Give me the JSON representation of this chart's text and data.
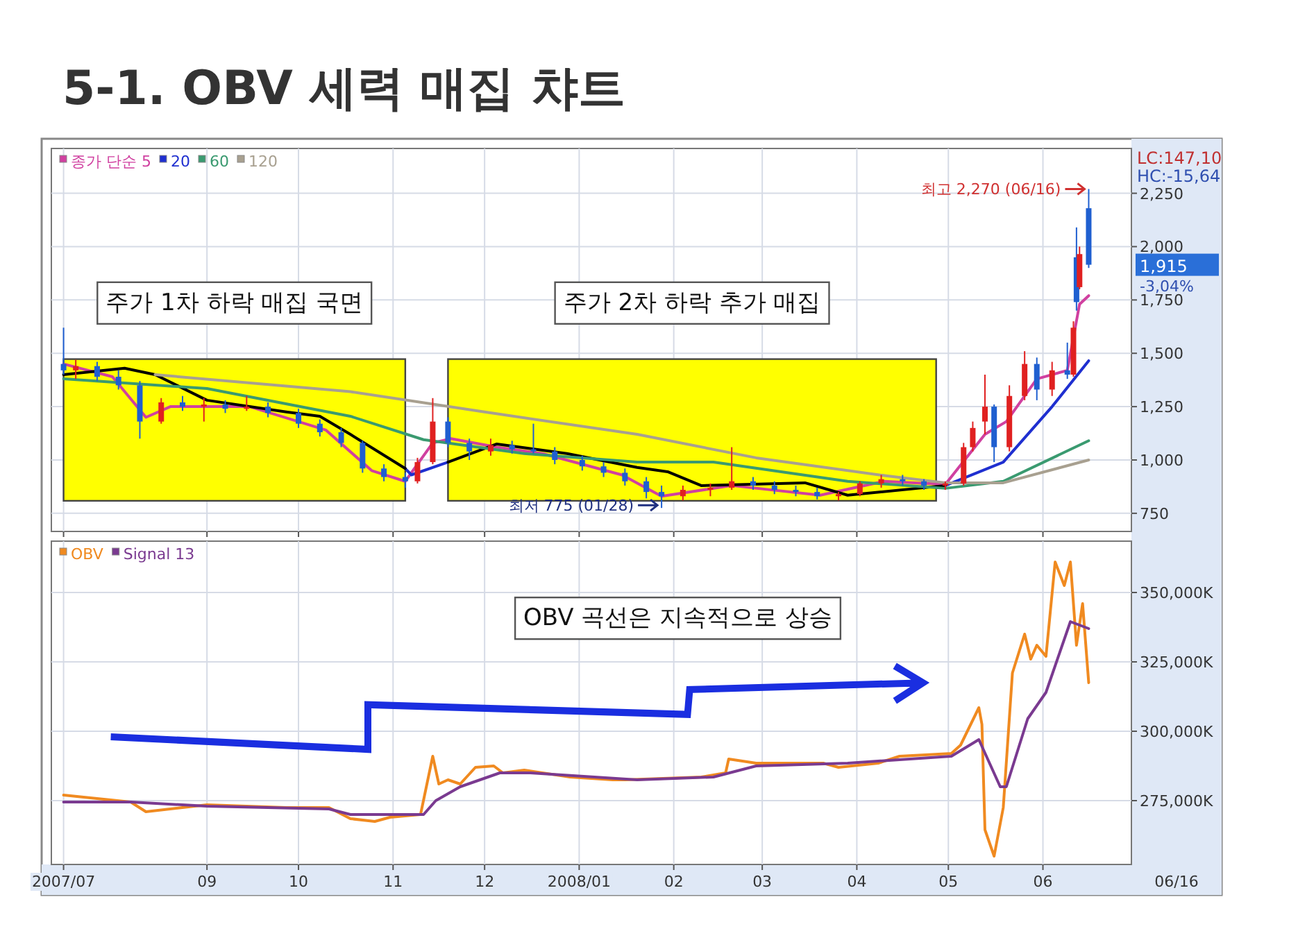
{
  "chart_data": [
    {
      "type": "candlestick",
      "title": "5-1. OBV 세력 매집 챠트",
      "x": [
        "2007-07-16",
        "2007-07-20",
        "2007-07-27",
        "2007-08-03",
        "2007-08-10",
        "2007-08-17",
        "2007-08-24",
        "2007-08-31",
        "2007-09-07",
        "2007-09-14",
        "2007-09-21",
        "2007-10-01",
        "2007-10-08",
        "2007-10-15",
        "2007-10-22",
        "2007-10-29",
        "2007-11-05",
        "2007-11-09",
        "2007-11-14",
        "2007-11-19",
        "2007-11-26",
        "2007-12-03",
        "2007-12-10",
        "2007-12-17",
        "2007-12-24",
        "2008-01-02",
        "2008-01-09",
        "2008-01-16",
        "2008-01-23",
        "2008-01-28",
        "2008-02-04",
        "2008-02-13",
        "2008-02-20",
        "2008-02-27",
        "2008-03-05",
        "2008-03-12",
        "2008-03-19",
        "2008-03-26",
        "2008-04-02",
        "2008-04-09",
        "2008-04-16",
        "2008-04-23",
        "2008-04-30",
        "2008-05-06",
        "2008-05-09",
        "2008-05-13",
        "2008-05-16",
        "2008-05-21",
        "2008-05-26",
        "2008-05-30",
        "2008-06-04",
        "2008-06-09",
        "2008-06-11",
        "2008-06-12",
        "2008-06-13",
        "2008-06-16"
      ],
      "ohlc": [
        [
          1450,
          1620,
          1400,
          1420
        ],
        [
          1420,
          1470,
          1380,
          1440
        ],
        [
          1440,
          1460,
          1370,
          1390
        ],
        [
          1390,
          1420,
          1330,
          1350
        ],
        [
          1350,
          1370,
          1100,
          1180
        ],
        [
          1180,
          1290,
          1170,
          1270
        ],
        [
          1270,
          1300,
          1230,
          1250
        ],
        [
          1250,
          1290,
          1180,
          1260
        ],
        [
          1260,
          1280,
          1220,
          1240
        ],
        [
          1240,
          1300,
          1230,
          1250
        ],
        [
          1250,
          1270,
          1200,
          1220
        ],
        [
          1220,
          1240,
          1150,
          1170
        ],
        [
          1170,
          1190,
          1110,
          1130
        ],
        [
          1130,
          1150,
          1060,
          1080
        ],
        [
          1080,
          1090,
          940,
          960
        ],
        [
          960,
          980,
          900,
          920
        ],
        [
          920,
          940,
          870,
          900
        ],
        [
          900,
          1010,
          890,
          990
        ],
        [
          990,
          1290,
          980,
          1180
        ],
        [
          1180,
          1200,
          1060,
          1080
        ],
        [
          1080,
          1100,
          1000,
          1040
        ],
        [
          1040,
          1100,
          1020,
          1070
        ],
        [
          1070,
          1090,
          1030,
          1050
        ],
        [
          1050,
          1170,
          1030,
          1040
        ],
        [
          1040,
          1060,
          980,
          1000
        ],
        [
          1000,
          1020,
          950,
          970
        ],
        [
          970,
          990,
          920,
          940
        ],
        [
          940,
          960,
          880,
          900
        ],
        [
          900,
          920,
          820,
          850
        ],
        [
          850,
          880,
          775,
          830
        ],
        [
          830,
          880,
          810,
          860
        ],
        [
          860,
          890,
          830,
          870
        ],
        [
          870,
          1060,
          860,
          900
        ],
        [
          900,
          920,
          860,
          880
        ],
        [
          880,
          900,
          840,
          860
        ],
        [
          860,
          880,
          830,
          850
        ],
        [
          850,
          870,
          815,
          830
        ],
        [
          830,
          850,
          810,
          840
        ],
        [
          840,
          900,
          830,
          890
        ],
        [
          890,
          930,
          870,
          910
        ],
        [
          910,
          930,
          880,
          900
        ],
        [
          900,
          910,
          860,
          880
        ],
        [
          880,
          900,
          860,
          890
        ],
        [
          890,
          1080,
          880,
          1060
        ],
        [
          1060,
          1180,
          1040,
          1150
        ],
        [
          1180,
          1400,
          1120,
          1250
        ],
        [
          1250,
          1260,
          990,
          1060
        ],
        [
          1060,
          1350,
          1040,
          1300
        ],
        [
          1300,
          1510,
          1280,
          1450
        ],
        [
          1450,
          1480,
          1280,
          1330
        ],
        [
          1330,
          1460,
          1300,
          1420
        ],
        [
          1420,
          1550,
          1380,
          1400
        ],
        [
          1400,
          1650,
          1390,
          1620
        ],
        [
          1950,
          2090,
          1700,
          1740
        ],
        [
          1810,
          2000,
          1800,
          1965
        ],
        [
          2180,
          2270,
          1900,
          1915
        ]
      ],
      "series": [
        {
          "name": "종가 단순 5",
          "type": "line",
          "color": "#d040a0",
          "x": [
            "2007-07-16",
            "2007-08-01",
            "2007-08-12",
            "2007-08-20",
            "2007-09-15",
            "2007-10-10",
            "2007-10-25",
            "2007-11-05",
            "2007-11-14",
            "2007-11-20",
            "2007-12-05",
            "2007-12-20",
            "2008-01-15",
            "2008-01-28",
            "2008-02-20",
            "2008-03-20",
            "2008-04-10",
            "2008-04-30",
            "2008-05-13",
            "2008-05-20",
            "2008-05-30",
            "2008-06-09",
            "2008-06-13",
            "2008-06-16"
          ],
          "values": [
            1450,
            1390,
            1200,
            1250,
            1250,
            1140,
            950,
            900,
            1080,
            1100,
            1060,
            1030,
            930,
            830,
            880,
            835,
            900,
            885,
            1120,
            1180,
            1380,
            1420,
            1730,
            1770
          ]
        },
        {
          "name": "20",
          "type": "line",
          "color": "#1f2fd0",
          "x": [
            "2007-11-05",
            "2007-11-07",
            "2007-11-19",
            "2007-12-01",
            "2008-04-30",
            "2008-05-19",
            "2008-06-04",
            "2008-06-16"
          ],
          "values": [
            960,
            930,
            990,
            null,
            880,
            990,
            1250,
            1465
          ]
        },
        {
          "type": "line",
          "color": "#000000",
          "x": [
            "2007-07-16",
            "2007-08-05",
            "2007-08-15",
            "2007-09-01",
            "2007-09-27",
            "2007-10-08",
            "2007-10-18",
            "2007-11-05",
            "2007-11-12",
            "2007-11-19",
            "2007-12-05",
            "2007-12-28",
            "2008-01-20",
            "2008-01-30",
            "2008-02-10",
            "2008-03-15",
            "2008-03-29",
            "2008-04-30"
          ],
          "values": [
            1400,
            1430,
            1400,
            1280,
            1225,
            1205,
            1120,
            960,
            null,
            990,
            1075,
            1030,
            965,
            945,
            880,
            893,
            835,
            880
          ]
        },
        {
          "name": "60",
          "type": "line",
          "color": "#3a9a70",
          "x": [
            "2007-07-16",
            "2007-09-01",
            "2007-10-18",
            "2007-11-11",
            "2007-12-14",
            "2008-01-20",
            "2008-02-14",
            "2008-03-29",
            "2008-04-30",
            "2008-05-19",
            "2008-06-16"
          ],
          "values": [
            1380,
            1335,
            1205,
            1095,
            1030,
            990,
            990,
            900,
            867,
            900,
            1090
          ]
        },
        {
          "name": "120",
          "type": "line",
          "color": "#a8a090",
          "x": [
            "2007-08-15",
            "2007-10-18",
            "2007-12-01",
            "2008-01-20",
            "2008-02-28",
            "2008-04-11",
            "2008-04-30",
            "2008-05-19",
            "2008-06-16"
          ],
          "values": [
            1400,
            1320,
            1225,
            1120,
            1010,
            925,
            893,
            893,
            1000
          ]
        }
      ],
      "xlim": [
        "2007-07-12",
        "2008-06-30"
      ],
      "xticks": [
        {
          "value": "2007-07-16",
          "label": null
        },
        {
          "value": "2007-09-01",
          "label": null
        },
        {
          "value": "2007-10-01",
          "label": null
        },
        {
          "value": "2007-11-01",
          "label": null
        },
        {
          "value": "2007-12-01",
          "label": null
        },
        {
          "value": "2008-01-01",
          "label": null
        },
        {
          "value": "2008-02-01",
          "label": null
        },
        {
          "value": "2008-03-01",
          "label": null
        },
        {
          "value": "2008-04-01",
          "label": null
        },
        {
          "value": "2008-05-01",
          "label": null
        },
        {
          "value": "2008-06-01",
          "label": null
        }
      ],
      "ylim": [
        665,
        2460
      ],
      "yticks": [
        750,
        {
          "value": 1000,
          "label": "1,000"
        },
        {
          "value": 1250,
          "label": "1,250"
        },
        {
          "value": 1500,
          "label": "1,500"
        },
        {
          "value": 1750,
          "label": "1,750"
        },
        {
          "value": 2000,
          "label": "2,000"
        },
        {
          "value": 2250,
          "label": "2,250"
        }
      ],
      "tick_labels": "y",
      "grid": true,
      "legend": "top left",
      "bands": [
        {
          "axis": "x",
          "from": "2007-07-16",
          "to": "2007-11-05",
          "label": "주가 1차 하락 매집 국면",
          "color": "#ffff00"
        },
        {
          "axis": "x",
          "from": "2007-11-19",
          "to": "2008-04-27",
          "label": "주가 2차 하락 추가 매집",
          "color": "#ffff00"
        }
      ],
      "annotations": [
        "LC:147,10",
        "HC:-15,64",
        {
          "text": "최고 2,270 (06/16)",
          "x": "2008-06-16",
          "y": 2270
        },
        {
          "text": "최저 775 (01/28)",
          "x": "2008-01-28",
          "y": 775
        },
        "1,915",
        "-3,04%"
      ]
    },
    {
      "type": "line",
      "series": [
        {
          "name": "OBV",
          "color": "#f08a20",
          "x": [
            "2007-07-16",
            "2007-08-07",
            "2007-08-12",
            "2007-09-01",
            "2007-09-27",
            "2007-10-11",
            "2007-10-18",
            "2007-10-26",
            "2007-10-31",
            "2007-11-10",
            "2007-11-14",
            "2007-11-16",
            "2007-11-19",
            "2007-11-23",
            "2007-11-28",
            "2007-12-04",
            "2007-12-07",
            "2007-12-14",
            "2007-12-29",
            "2008-01-12",
            "2008-01-16",
            "2008-02-10",
            "2008-02-18",
            "2008-02-19",
            "2008-02-22",
            "2008-02-28",
            "2008-03-21",
            "2008-03-26",
            "2008-04-08",
            "2008-04-15",
            "2008-05-02",
            "2008-05-05",
            "2008-05-11",
            "2008-05-12",
            "2008-05-13",
            "2008-05-16",
            "2008-05-19",
            "2008-05-22",
            "2008-05-26",
            "2008-05-28",
            "2008-05-30",
            "2008-06-02",
            "2008-06-05",
            "2008-06-08",
            "2008-06-10",
            "2008-06-12",
            "2008-06-14",
            "2008-06-16"
          ],
          "values": [
            277000,
            274500,
            271000,
            273500,
            272500,
            272500,
            268500,
            267500,
            269000,
            270000,
            291000,
            281000,
            282500,
            281000,
            287000,
            287500,
            285000,
            286000,
            283500,
            282500,
            282500,
            283500,
            285000,
            290000,
            289500,
            288500,
            288500,
            287000,
            288500,
            291000,
            292000,
            295000,
            308500,
            302500,
            264500,
            255000,
            272500,
            321000,
            335000,
            326000,
            331000,
            327000,
            361000,
            352500,
            361000,
            331000,
            346000,
            317500
          ]
        },
        {
          "name": "Signal 13",
          "color": "#7a3a90",
          "x": [
            "2007-07-16",
            "2007-08-07",
            "2007-09-01",
            "2007-10-11",
            "2007-10-18",
            "2007-11-11",
            "2007-11-15",
            "2007-11-23",
            "2007-12-06",
            "2007-12-16",
            "2008-01-20",
            "2008-02-14",
            "2008-02-28",
            "2008-03-29",
            "2008-05-02",
            "2008-05-11",
            "2008-05-18",
            "2008-05-20",
            "2008-05-27",
            "2008-06-02",
            "2008-06-10",
            "2008-06-16"
          ],
          "values": [
            274500,
            274500,
            273000,
            272000,
            270000,
            270000,
            275000,
            280000,
            285000,
            285000,
            282500,
            283500,
            287500,
            288500,
            291000,
            297000,
            280000,
            280000,
            304500,
            314000,
            339500,
            337000
          ]
        }
      ],
      "xlim": [
        "2007-07-12",
        "2008-06-30"
      ],
      "xticks": [
        {
          "value": "2007-07-16",
          "label": "2007/07"
        },
        {
          "value": "2007-09-01",
          "label": "09"
        },
        {
          "value": "2007-10-01",
          "label": "10"
        },
        {
          "value": "2007-11-01",
          "label": "11"
        },
        {
          "value": "2007-12-01",
          "label": "12"
        },
        {
          "value": "2008-01-01",
          "label": "2008/01"
        },
        {
          "value": "2008-02-01",
          "label": "02"
        },
        {
          "value": "2008-03-01",
          "label": "03"
        },
        {
          "value": "2008-04-01",
          "label": "04"
        },
        {
          "value": "2008-05-01",
          "label": "05"
        },
        {
          "value": "2008-06-01",
          "label": "06"
        }
      ],
      "ylim": [
        252000,
        368500
      ],
      "yticks": [
        {
          "value": 275000,
          "label": "275,000K"
        },
        {
          "value": 300000,
          "label": "300,000K"
        },
        {
          "value": 325000,
          "label": "325,000K"
        },
        {
          "value": 350000,
          "label": "350,000K"
        }
      ],
      "grid": true,
      "legend": "top left",
      "annotations": [
        "OBV 곡선은 지속적으로 상승",
        "06/16"
      ]
    }
  ]
}
